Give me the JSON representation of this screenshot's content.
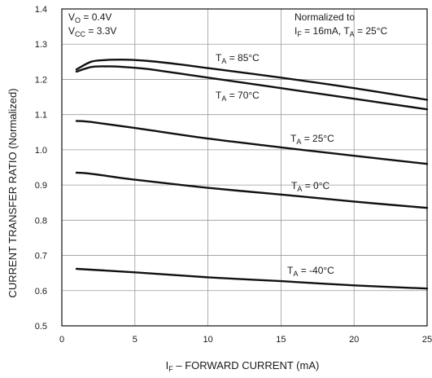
{
  "chart_data": {
    "type": "line",
    "xlabel": {
      "main": "I",
      "sub": "F",
      "rest": " – FORWARD CURRENT (mA)"
    },
    "ylabel": "CURRENT TRANSFER RATIO (Normalized)",
    "xlim": [
      0,
      25
    ],
    "ylim": [
      0.5,
      1.4
    ],
    "xticks": [
      0,
      5,
      10,
      15,
      20,
      25
    ],
    "xtick_labels": [
      "0",
      "5",
      "10",
      "15",
      "20",
      "25"
    ],
    "yticks": [
      0.5,
      0.6,
      0.7,
      0.8,
      0.9,
      1.0,
      1.1,
      1.2,
      1.3,
      1.4
    ],
    "ytick_labels": [
      "0.5",
      "0.6",
      "0.7",
      "0.8",
      "0.9",
      "1.0",
      "1.1",
      "1.2",
      "1.3",
      "1.4"
    ],
    "grid": true,
    "conditions": [
      {
        "main": "V",
        "sub": "O",
        "rest": " = 0.4V"
      },
      {
        "main": "V",
        "sub": "CC",
        "rest": " = 3.3V"
      }
    ],
    "normalization": {
      "line1": "Normalized to",
      "line2": [
        {
          "main": "I",
          "sub": "F",
          "rest": " = 16mA, "
        },
        {
          "main": "T",
          "sub": "A",
          "rest": " = 25°C"
        }
      ]
    },
    "series": [
      {
        "name": {
          "main": "T",
          "sub": "A",
          "rest": " = 85°C"
        },
        "x": [
          1,
          2,
          3,
          4,
          5,
          6,
          8,
          10,
          15,
          20,
          25
        ],
        "y": [
          1.228,
          1.25,
          1.255,
          1.256,
          1.255,
          1.252,
          1.243,
          1.232,
          1.205,
          1.175,
          1.142
        ]
      },
      {
        "name": {
          "main": "T",
          "sub": "A",
          "rest": " = 70°C"
        },
        "x": [
          1,
          2,
          3,
          4,
          5,
          6,
          8,
          10,
          15,
          20,
          25
        ],
        "y": [
          1.222,
          1.235,
          1.237,
          1.236,
          1.233,
          1.229,
          1.217,
          1.205,
          1.175,
          1.145,
          1.115
        ]
      },
      {
        "name": {
          "main": "T",
          "sub": "A",
          "rest": " = 25°C"
        },
        "x": [
          1,
          2,
          5,
          10,
          15,
          20,
          25
        ],
        "y": [
          1.082,
          1.079,
          1.062,
          1.032,
          1.007,
          0.983,
          0.96
        ]
      },
      {
        "name": {
          "main": "T",
          "sub": "A",
          "rest": " = 0°C"
        },
        "x": [
          1,
          2,
          5,
          10,
          15,
          20,
          25
        ],
        "y": [
          0.935,
          0.932,
          0.915,
          0.892,
          0.873,
          0.853,
          0.835
        ]
      },
      {
        "name": {
          "main": "T",
          "sub": "A",
          "rest": " = -40°C"
        },
        "x": [
          1,
          5,
          10,
          15,
          20,
          25
        ],
        "y": [
          0.662,
          0.652,
          0.638,
          0.627,
          0.615,
          0.606
        ]
      }
    ]
  }
}
